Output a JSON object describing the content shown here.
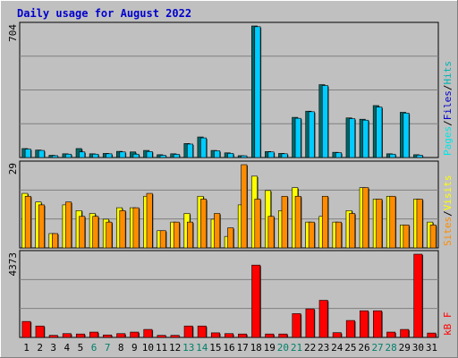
{
  "chart_data": {
    "type": "bar",
    "title": "Daily usage for August 2022",
    "days": [
      "1",
      "2",
      "3",
      "4",
      "5",
      "6",
      "7",
      "8",
      "9",
      "10",
      "11",
      "12",
      "13",
      "14",
      "15",
      "16",
      "17",
      "18",
      "19",
      "20",
      "21",
      "22",
      "23",
      "24",
      "25",
      "26",
      "27",
      "28",
      "29",
      "30",
      "31"
    ],
    "weekend_days": [
      "6",
      "7",
      "13",
      "14",
      "20",
      "21",
      "27",
      "28"
    ],
    "panels": [
      {
        "name": "traffic",
        "ymax_label": "704",
        "ymax": 704,
        "legend": [
          "Pages",
          "/",
          "Files",
          "/",
          "Hits"
        ],
        "series": [
          {
            "name": "Hits",
            "color": "#006666",
            "values": [
              48,
              40,
              12,
              20,
              48,
              20,
              22,
              33,
              30,
              38,
              15,
              20,
              75,
              110,
              38,
              25,
              10,
              704,
              32,
              22,
              215,
              248,
              390,
              28,
              212,
              205,
              278,
              20,
              242,
              15,
              0
            ]
          },
          {
            "name": "Files",
            "color": "#00ccff",
            "values": [
              45,
              38,
              10,
              18,
              30,
              18,
              20,
              30,
              18,
              32,
              12,
              17,
              72,
              105,
              36,
              22,
              8,
              700,
              30,
              20,
              210,
              245,
              385,
              26,
              208,
              200,
              270,
              18,
              238,
              13,
              0
            ]
          },
          {
            "name": "Pages",
            "color": "#00e6e6",
            "values": [
              0,
              0,
              0,
              0,
              0,
              0,
              0,
              0,
              0,
              0,
              0,
              0,
              0,
              0,
              0,
              0,
              0,
              0,
              0,
              0,
              0,
              0,
              0,
              0,
              0,
              0,
              0,
              0,
              0,
              0,
              0
            ]
          }
        ]
      },
      {
        "name": "visits",
        "ymax_label": "29",
        "ymax": 29,
        "legend": [
          "Sites",
          "/",
          "Visits"
        ],
        "series": [
          {
            "name": "Visits",
            "color": "#ffff00",
            "values": [
              19,
              16,
              5,
              15,
              13,
              12,
              10,
              14,
              14,
              18,
              6,
              9,
              12,
              18,
              10,
              4,
              15,
              25,
              20,
              13,
              21,
              9,
              11,
              9,
              13,
              21,
              17,
              18,
              8,
              17,
              9
            ]
          },
          {
            "name": "Sites",
            "color": "#ff8c00",
            "values": [
              18,
              15,
              5,
              16,
              11,
              11,
              9,
              13,
              14,
              19,
              6,
              9,
              9,
              17,
              12,
              7,
              29,
              17,
              11,
              18,
              18,
              9,
              18,
              9,
              12,
              21,
              17,
              18,
              8,
              17,
              8
            ]
          }
        ]
      },
      {
        "name": "kbytes",
        "ymax_label": "4373",
        "ymax": 4373,
        "legend": [
          "kB F"
        ],
        "series": [
          {
            "name": "kB F",
            "color": "#ff0000",
            "values": [
              840,
              600,
              110,
              200,
              180,
              280,
              130,
              200,
              280,
              420,
              110,
              110,
              600,
              600,
              240,
              200,
              180,
              3800,
              180,
              180,
              1250,
              1500,
              1950,
              250,
              890,
              1400,
              1400,
              280,
              420,
              4373,
              230
            ]
          }
        ]
      }
    ]
  }
}
